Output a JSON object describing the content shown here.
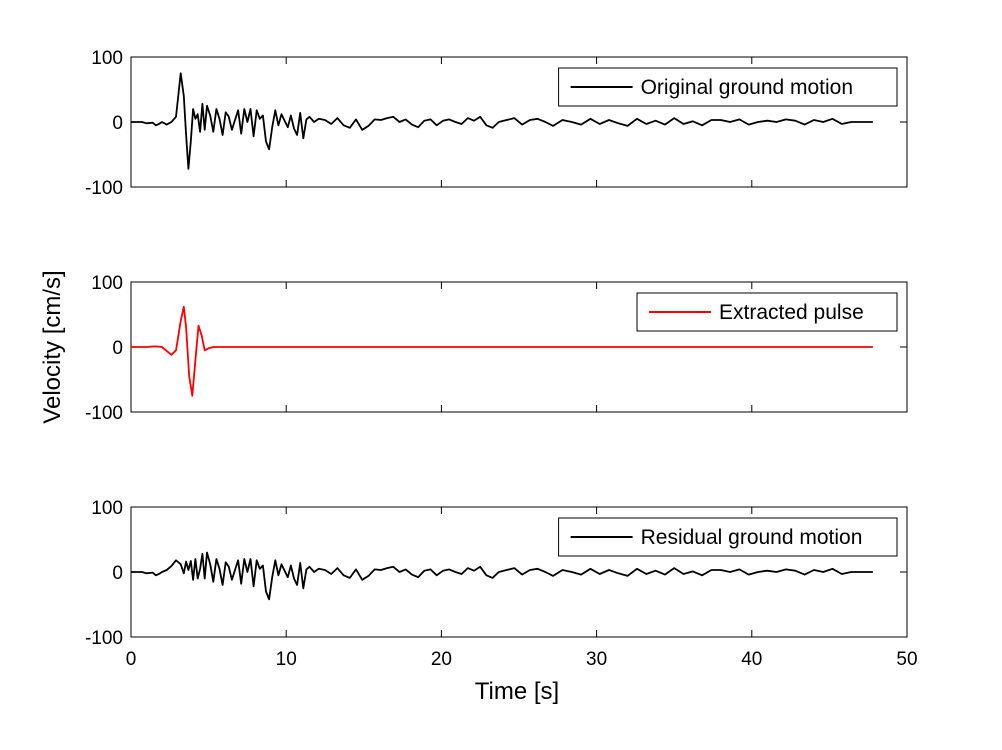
{
  "chart_data": {
    "type": "line",
    "xlabel": "Time [s]",
    "ylabel": "Velocity [cm/s]",
    "xlim": [
      0,
      50
    ],
    "xticks": [
      0,
      10,
      20,
      30,
      40,
      50
    ],
    "ylim": [
      -100,
      100
    ],
    "yticks": [
      -100,
      0,
      100
    ],
    "grid": false,
    "legend_position": "top-right",
    "panels": [
      {
        "series": [
          {
            "name": "Original ground motion",
            "color": "#000000",
            "x": [
              0,
              0.7,
              1.0,
              1.4,
              1.6,
              1.8,
              2.0,
              2.3,
              2.6,
              2.9,
              3.2,
              3.4,
              3.55,
              3.7,
              3.85,
              4.0,
              4.15,
              4.3,
              4.45,
              4.6,
              4.75,
              4.9,
              5.1,
              5.3,
              5.5,
              5.7,
              5.9,
              6.1,
              6.3,
              6.5,
              6.7,
              6.9,
              7.1,
              7.3,
              7.5,
              7.7,
              7.9,
              8.1,
              8.3,
              8.5,
              8.7,
              8.9,
              9.1,
              9.3,
              9.5,
              9.7,
              9.9,
              10.1,
              10.3,
              10.5,
              10.7,
              10.9,
              11.1,
              11.3,
              11.5,
              11.8,
              12.1,
              12.5,
              12.9,
              13.3,
              13.7,
              14.1,
              14.5,
              14.9,
              15.3,
              15.7,
              16.1,
              16.5,
              16.9,
              17.3,
              17.7,
              18.1,
              18.5,
              18.9,
              19.3,
              19.7,
              20.1,
              20.5,
              20.9,
              21.3,
              21.7,
              22.1,
              22.5,
              22.9,
              23.3,
              23.7,
              24.2,
              24.7,
              25.2,
              25.7,
              26.2,
              26.7,
              27.2,
              27.8,
              28.4,
              29.0,
              29.6,
              30.2,
              30.8,
              31.4,
              32.0,
              32.6,
              33.2,
              33.8,
              34.4,
              35.0,
              35.6,
              36.2,
              36.8,
              37.4,
              38.0,
              38.6,
              39.2,
              39.8,
              40.4,
              41.0,
              41.6,
              42.2,
              42.8,
              43.4,
              44.0,
              44.6,
              45.2,
              45.8,
              46.4,
              47.0,
              47.8
            ],
            "y": [
              0,
              0,
              -2,
              -1,
              -5,
              -3,
              0,
              -4,
              0,
              8,
              75,
              40,
              -20,
              -72,
              -30,
              20,
              5,
              12,
              -15,
              28,
              -12,
              25,
              10,
              -15,
              20,
              5,
              -20,
              15,
              8,
              -12,
              3,
              18,
              -18,
              20,
              0,
              20,
              -22,
              18,
              5,
              10,
              -30,
              -42,
              -8,
              18,
              -5,
              12,
              2,
              -8,
              10,
              -10,
              -20,
              14,
              -25,
              4,
              8,
              0,
              5,
              3,
              -3,
              6,
              -5,
              -9,
              4,
              -12,
              -6,
              4,
              3,
              6,
              8,
              0,
              4,
              -4,
              -8,
              2,
              4,
              -5,
              2,
              4,
              0,
              -3,
              6,
              2,
              8,
              -5,
              -9,
              0,
              3,
              6,
              -4,
              3,
              5,
              0,
              -6,
              3,
              0,
              -4,
              5,
              -3,
              3,
              -2,
              -6,
              5,
              -3,
              2,
              -4,
              6,
              -3,
              1,
              -5,
              3,
              3,
              0,
              4,
              -4,
              0,
              2,
              0,
              4,
              2,
              -4,
              3,
              0,
              5,
              -3,
              0,
              0,
              0
            ]
          }
        ]
      },
      {
        "series": [
          {
            "name": "Extracted pulse",
            "color": "#ff0000",
            "x": [
              0,
              1.0,
              1.6,
              2.0,
              2.3,
              2.6,
              2.9,
              3.2,
              3.4,
              3.55,
              3.75,
              3.95,
              4.15,
              4.35,
              4.55,
              4.75,
              5.0,
              5.3,
              6.0,
              47.8
            ],
            "y": [
              0,
              0,
              1,
              0,
              -6,
              -12,
              -5,
              40,
              62,
              30,
              -45,
              -75,
              -20,
              33,
              18,
              -5,
              -2,
              0,
              0,
              0
            ]
          }
        ]
      },
      {
        "series": [
          {
            "name": "Residual ground motion",
            "color": "#000000",
            "x": [
              0,
              0.7,
              1.0,
              1.4,
              1.6,
              1.8,
              2.0,
              2.3,
              2.6,
              2.9,
              3.2,
              3.4,
              3.55,
              3.7,
              3.85,
              4.0,
              4.15,
              4.3,
              4.45,
              4.6,
              4.75,
              4.9,
              5.1,
              5.3,
              5.5,
              5.7,
              5.9,
              6.1,
              6.3,
              6.5,
              6.7,
              6.9,
              7.1,
              7.3,
              7.5,
              7.7,
              7.9,
              8.1,
              8.3,
              8.5,
              8.7,
              8.9,
              9.1,
              9.3,
              9.5,
              9.7,
              9.9,
              10.1,
              10.3,
              10.5,
              10.7,
              10.9,
              11.1,
              11.3,
              11.5,
              11.8,
              12.1,
              12.5,
              12.9,
              13.3,
              13.7,
              14.1,
              14.5,
              14.9,
              15.3,
              15.7,
              16.1,
              16.5,
              16.9,
              17.3,
              17.7,
              18.1,
              18.5,
              18.9,
              19.3,
              19.7,
              20.1,
              20.5,
              20.9,
              21.3,
              21.7,
              22.1,
              22.5,
              22.9,
              23.3,
              23.7,
              24.2,
              24.7,
              25.2,
              25.7,
              26.2,
              26.7,
              27.2,
              27.8,
              28.4,
              29.0,
              29.6,
              30.2,
              30.8,
              31.4,
              32.0,
              32.6,
              33.2,
              33.8,
              34.4,
              35.0,
              35.6,
              36.2,
              36.8,
              37.4,
              38.0,
              38.6,
              39.2,
              39.8,
              40.4,
              41.0,
              41.6,
              42.2,
              42.8,
              43.4,
              44.0,
              44.6,
              45.2,
              45.8,
              46.4,
              47.0,
              47.8
            ],
            "y": [
              0,
              0,
              -2,
              -1,
              -5,
              -3,
              0,
              3,
              9,
              18,
              12,
              -2,
              16,
              3,
              17,
              -12,
              20,
              -10,
              5,
              28,
              -10,
              30,
              12,
              -15,
              20,
              5,
              -20,
              15,
              8,
              -12,
              3,
              18,
              -18,
              20,
              0,
              20,
              -22,
              18,
              5,
              10,
              -30,
              -42,
              -8,
              18,
              -5,
              12,
              2,
              -8,
              10,
              -10,
              -20,
              14,
              -25,
              4,
              8,
              0,
              5,
              3,
              -3,
              6,
              -5,
              -9,
              4,
              -12,
              -6,
              4,
              3,
              6,
              8,
              0,
              4,
              -4,
              -8,
              2,
              4,
              -5,
              2,
              4,
              0,
              -3,
              6,
              2,
              8,
              -5,
              -9,
              0,
              3,
              6,
              -4,
              3,
              5,
              0,
              -6,
              3,
              0,
              -4,
              5,
              -3,
              3,
              -2,
              -6,
              5,
              -3,
              2,
              -4,
              6,
              -3,
              1,
              -5,
              3,
              3,
              0,
              4,
              -4,
              0,
              2,
              0,
              4,
              2,
              -4,
              3,
              0,
              5,
              -3,
              0,
              0,
              0
            ]
          }
        ]
      }
    ]
  }
}
